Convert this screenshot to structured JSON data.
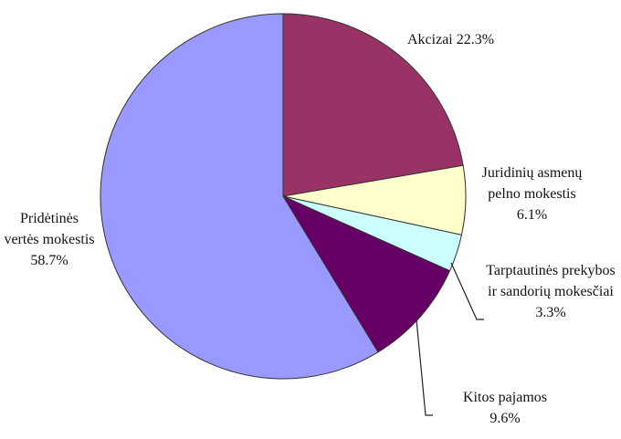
{
  "chart_data": {
    "type": "pie",
    "categories": [
      "Akcizai",
      "Juridinių asmenų pelno mokestis",
      "Tarptautinės prekybos ir sandorių mokesčiai",
      "Kitos pajamos",
      "Pridėtinės vertės mokestis"
    ],
    "values": [
      22.3,
      6.1,
      3.3,
      9.6,
      58.7
    ],
    "value_labels": [
      "22.3%",
      "6.1%",
      "3.3%",
      "9.6%",
      "58.7%"
    ],
    "colors": [
      "#993366",
      "#ffffcc",
      "#ccffff",
      "#660066",
      "#9999ff"
    ]
  }
}
